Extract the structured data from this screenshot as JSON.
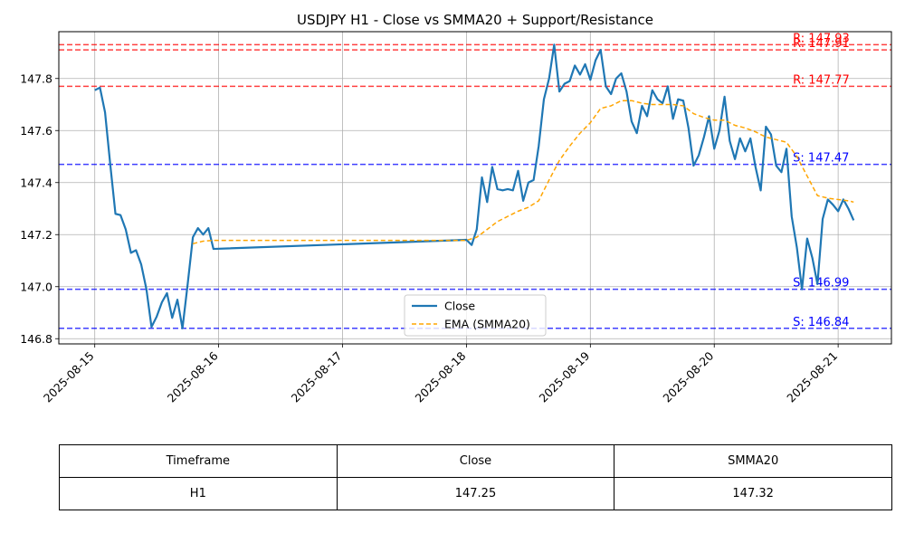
{
  "chart_data": {
    "type": "line",
    "title": "USDJPY H1 - Close vs SMMA20 + Support/Resistance",
    "xlabel": "",
    "ylabel": "",
    "x_ticks": [
      "2025-08-15",
      "2025-08-16",
      "2025-08-17",
      "2025-08-18",
      "2025-08-19",
      "2025-08-20",
      "2025-08-21"
    ],
    "y_ticks": [
      "146.8",
      "147.0",
      "147.2",
      "147.4",
      "147.6",
      "147.8"
    ],
    "ylim": [
      146.78,
      147.98
    ],
    "xlim": [
      -0.29,
      6.43
    ],
    "grid": true,
    "legend_position": "lower center",
    "series": [
      {
        "name": "Close",
        "color": "#1f77b4",
        "style": "solid",
        "points": [
          [
            0.0,
            147.755
          ],
          [
            0.042,
            147.765
          ],
          [
            0.083,
            147.67
          ],
          [
            0.125,
            147.47
          ],
          [
            0.167,
            147.28
          ],
          [
            0.208,
            147.275
          ],
          [
            0.25,
            147.22
          ],
          [
            0.292,
            147.13
          ],
          [
            0.333,
            147.14
          ],
          [
            0.375,
            147.085
          ],
          [
            0.417,
            146.99
          ],
          [
            0.458,
            146.845
          ],
          [
            0.5,
            146.885
          ],
          [
            0.542,
            146.94
          ],
          [
            0.583,
            146.975
          ],
          [
            0.625,
            146.88
          ],
          [
            0.667,
            146.95
          ],
          [
            0.708,
            146.84
          ],
          [
            0.75,
            147.01
          ],
          [
            0.792,
            147.19
          ],
          [
            0.833,
            147.225
          ],
          [
            0.875,
            147.2
          ],
          [
            0.917,
            147.225
          ],
          [
            0.958,
            147.145
          ],
          [
            3.0,
            147.18
          ],
          [
            3.042,
            147.16
          ],
          [
            3.083,
            147.22
          ],
          [
            3.125,
            147.42
          ],
          [
            3.167,
            147.325
          ],
          [
            3.208,
            147.46
          ],
          [
            3.25,
            147.375
          ],
          [
            3.292,
            147.37
          ],
          [
            3.333,
            147.375
          ],
          [
            3.375,
            147.37
          ],
          [
            3.417,
            147.445
          ],
          [
            3.458,
            147.33
          ],
          [
            3.5,
            147.4
          ],
          [
            3.542,
            147.41
          ],
          [
            3.583,
            147.54
          ],
          [
            3.625,
            147.72
          ],
          [
            3.667,
            147.8
          ],
          [
            3.708,
            147.93
          ],
          [
            3.75,
            147.75
          ],
          [
            3.792,
            147.78
          ],
          [
            3.833,
            147.79
          ],
          [
            3.875,
            147.85
          ],
          [
            3.917,
            147.815
          ],
          [
            3.958,
            147.855
          ],
          [
            4.0,
            147.795
          ],
          [
            4.042,
            147.87
          ],
          [
            4.083,
            147.91
          ],
          [
            4.125,
            147.77
          ],
          [
            4.167,
            147.74
          ],
          [
            4.208,
            147.8
          ],
          [
            4.25,
            147.82
          ],
          [
            4.292,
            147.75
          ],
          [
            4.333,
            147.635
          ],
          [
            4.375,
            147.59
          ],
          [
            4.417,
            147.695
          ],
          [
            4.458,
            147.655
          ],
          [
            4.5,
            147.755
          ],
          [
            4.542,
            147.72
          ],
          [
            4.583,
            147.705
          ],
          [
            4.625,
            147.77
          ],
          [
            4.667,
            147.645
          ],
          [
            4.708,
            147.72
          ],
          [
            4.75,
            147.715
          ],
          [
            4.792,
            147.61
          ],
          [
            4.833,
            147.465
          ],
          [
            4.875,
            147.505
          ],
          [
            4.917,
            147.575
          ],
          [
            4.958,
            147.655
          ],
          [
            5.0,
            147.53
          ],
          [
            5.042,
            147.6
          ],
          [
            5.083,
            147.73
          ],
          [
            5.125,
            147.56
          ],
          [
            5.167,
            147.49
          ],
          [
            5.208,
            147.57
          ],
          [
            5.25,
            147.52
          ],
          [
            5.292,
            147.57
          ],
          [
            5.333,
            147.46
          ],
          [
            5.375,
            147.37
          ],
          [
            5.417,
            147.615
          ],
          [
            5.458,
            147.585
          ],
          [
            5.5,
            147.465
          ],
          [
            5.542,
            147.44
          ],
          [
            5.583,
            147.53
          ],
          [
            5.625,
            147.27
          ],
          [
            5.667,
            147.15
          ],
          [
            5.708,
            146.99
          ],
          [
            5.75,
            147.185
          ],
          [
            5.792,
            147.11
          ],
          [
            5.833,
            147.01
          ],
          [
            5.875,
            147.26
          ],
          [
            5.917,
            147.335
          ],
          [
            5.958,
            147.315
          ],
          [
            6.0,
            147.29
          ],
          [
            6.042,
            147.335
          ],
          [
            6.083,
            147.3
          ],
          [
            6.125,
            147.255
          ]
        ]
      },
      {
        "name": "EMA (SMMA20)",
        "color": "#ffa500",
        "style": "dashed",
        "points": [
          [
            0.792,
            147.165
          ],
          [
            0.875,
            147.175
          ],
          [
            0.958,
            147.178
          ],
          [
            3.0,
            147.178
          ],
          [
            3.083,
            147.19
          ],
          [
            3.167,
            147.22
          ],
          [
            3.25,
            147.25
          ],
          [
            3.333,
            147.27
          ],
          [
            3.417,
            147.29
          ],
          [
            3.5,
            147.305
          ],
          [
            3.583,
            147.33
          ],
          [
            3.667,
            147.41
          ],
          [
            3.75,
            147.485
          ],
          [
            3.833,
            147.54
          ],
          [
            3.917,
            147.59
          ],
          [
            4.0,
            147.63
          ],
          [
            4.083,
            147.685
          ],
          [
            4.167,
            147.695
          ],
          [
            4.25,
            147.715
          ],
          [
            4.333,
            147.715
          ],
          [
            4.417,
            147.705
          ],
          [
            4.5,
            147.7
          ],
          [
            4.583,
            147.7
          ],
          [
            4.667,
            147.7
          ],
          [
            4.75,
            147.695
          ],
          [
            4.833,
            147.665
          ],
          [
            4.917,
            147.65
          ],
          [
            5.0,
            147.64
          ],
          [
            5.083,
            147.64
          ],
          [
            5.167,
            147.62
          ],
          [
            5.25,
            147.61
          ],
          [
            5.333,
            147.595
          ],
          [
            5.417,
            147.575
          ],
          [
            5.5,
            147.565
          ],
          [
            5.583,
            147.555
          ],
          [
            5.667,
            147.5
          ],
          [
            5.75,
            147.425
          ],
          [
            5.833,
            147.35
          ],
          [
            5.917,
            147.34
          ],
          [
            6.0,
            147.335
          ],
          [
            6.083,
            147.33
          ],
          [
            6.125,
            147.325
          ]
        ]
      }
    ],
    "horizontal_lines": [
      {
        "kind": "resistance",
        "value": 147.93,
        "label": "R: 147.93",
        "color": "#ff0000"
      },
      {
        "kind": "resistance",
        "value": 147.91,
        "label": "R: 147.91",
        "color": "#ff0000"
      },
      {
        "kind": "resistance",
        "value": 147.77,
        "label": "R: 147.77",
        "color": "#ff0000"
      },
      {
        "kind": "support",
        "value": 147.47,
        "label": "S: 147.47",
        "color": "#0000ff"
      },
      {
        "kind": "support",
        "value": 146.99,
        "label": "S: 146.99",
        "color": "#0000ff"
      },
      {
        "kind": "support",
        "value": 146.84,
        "label": "S: 146.84",
        "color": "#0000ff"
      }
    ]
  },
  "summary_table": {
    "headers": [
      "Timeframe",
      "Close",
      "SMMA20"
    ],
    "row": [
      "H1",
      "147.25",
      "147.32"
    ]
  }
}
